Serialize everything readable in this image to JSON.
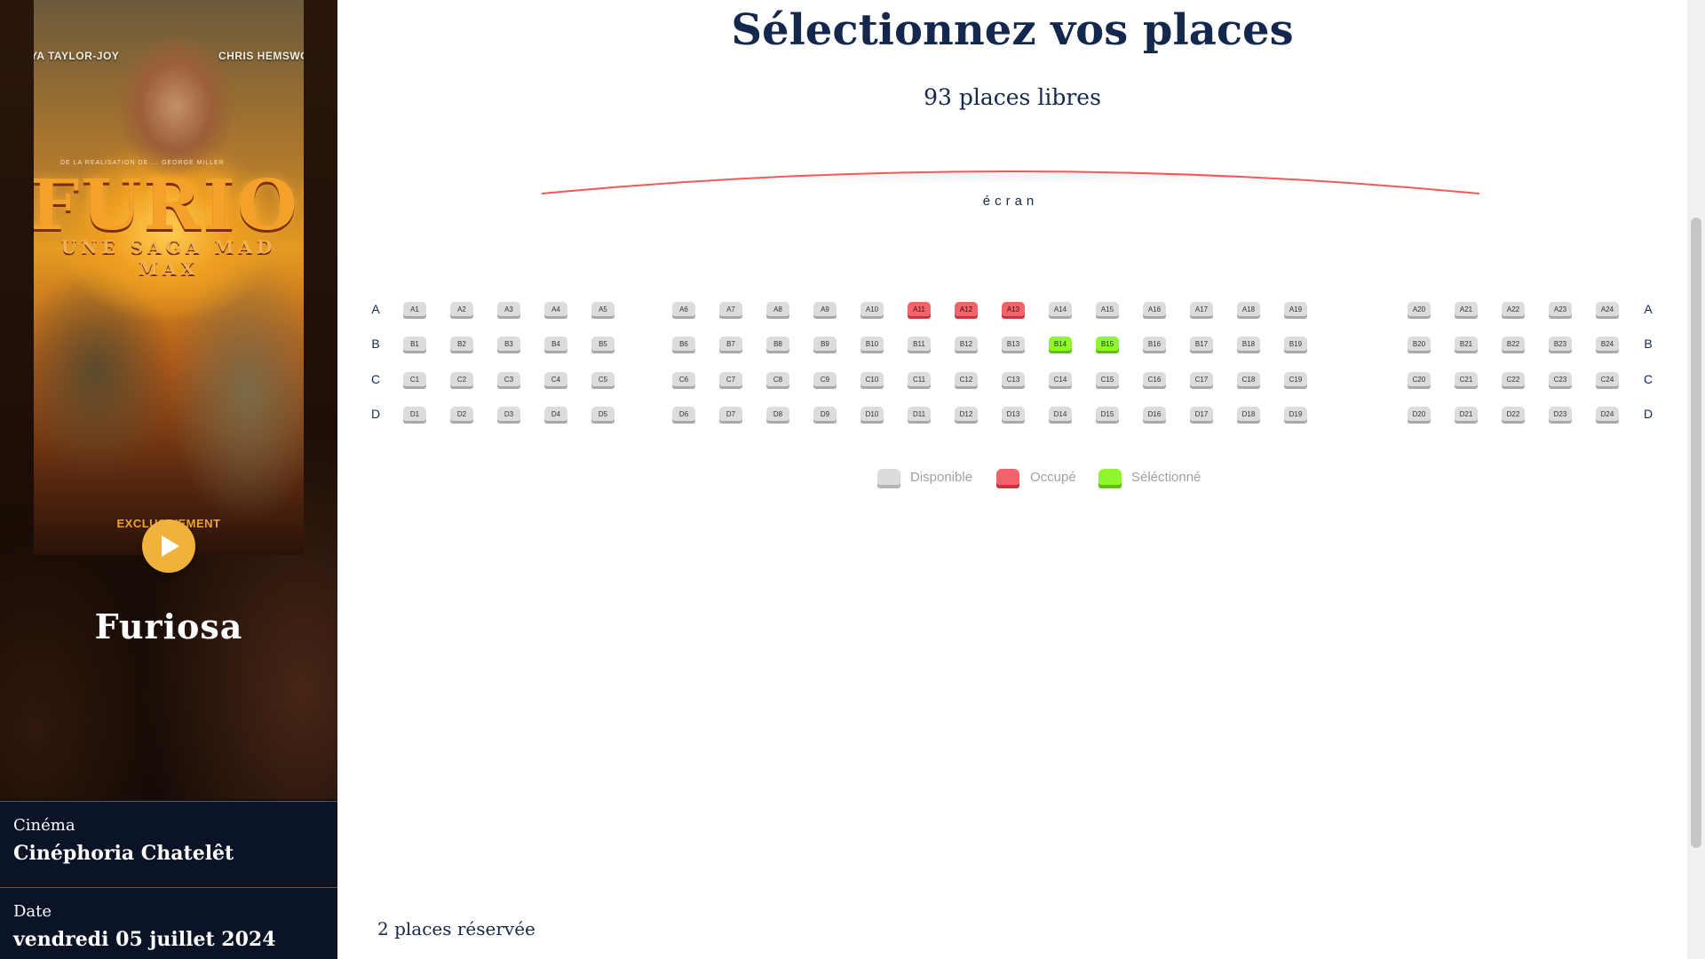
{
  "sidebar": {
    "poster": {
      "actor_left": "YA TAYLOR-JOY",
      "actor_right": "CHRIS HEMSWO",
      "tagline": "DE LA REALISATION DE ... GEORGE MILLER",
      "title": "FURIOSA",
      "subtitle": "UNE SAGA MAD MAX",
      "exclusive": "EXCLUSIVEMENT"
    },
    "movie_title": "Furiosa",
    "cinema_label": "Cinéma",
    "cinema_value": "Cinéphoria Chatelêt",
    "date_label": "Date",
    "date_value": "vendredi 05 juillet 2024",
    "play_icon": "play-icon"
  },
  "main": {
    "title": "Sélectionnez vos places",
    "free_seats": "93 places libres",
    "screen_label": "écran",
    "reserved_text": "2 places réservée"
  },
  "seating": {
    "rows": [
      "A",
      "B",
      "C",
      "D"
    ],
    "seats_per_row": 24,
    "occupied": [
      "A11",
      "A12",
      "A13"
    ],
    "selected": [
      "B14",
      "B15"
    ]
  },
  "legend": [
    {
      "label": "Disponible",
      "color": "#dcdcdc"
    },
    {
      "label": "Occupé",
      "color": "#f2636a"
    },
    {
      "label": "Séléctionné",
      "color": "#8ef62b"
    }
  ],
  "colors": {
    "accent_navy": "#13284c",
    "screen_line": "#f05a5a",
    "available": "#dcdcdc",
    "occupied": "#f2636a",
    "selected": "#8ef62b"
  }
}
